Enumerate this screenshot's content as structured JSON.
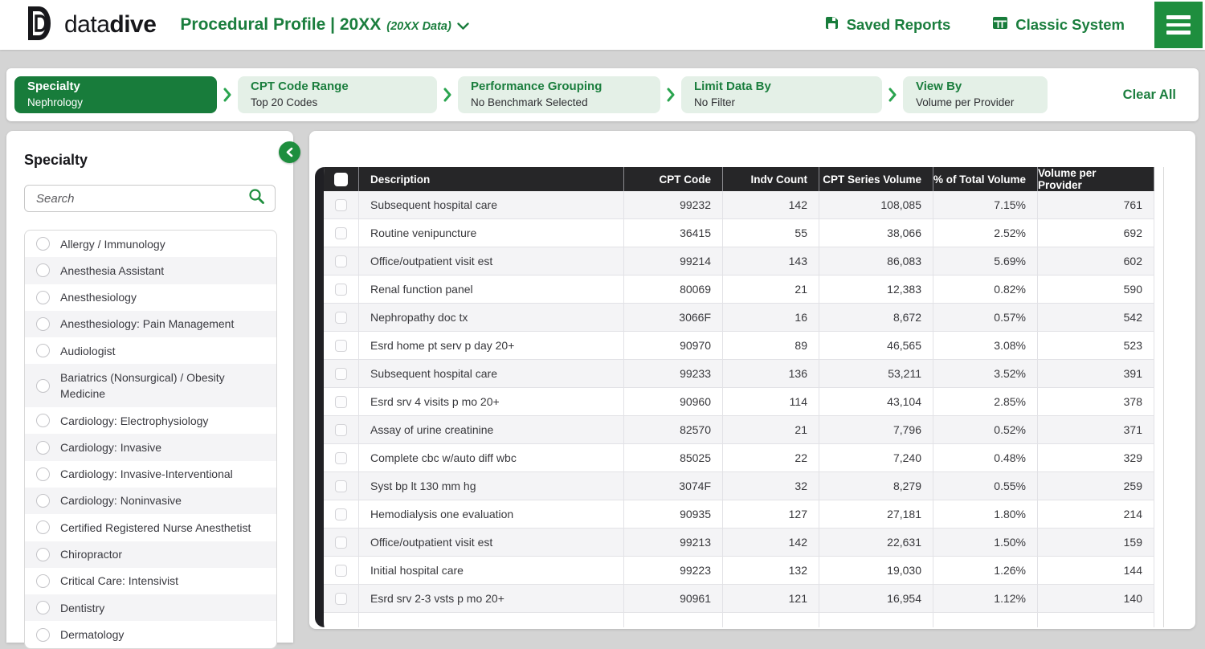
{
  "brand": {
    "logo_regular": "data",
    "logo_bold": "dive"
  },
  "header": {
    "title": "Procedural Profile | 20XX",
    "title_suffix": "(20XX Data)",
    "links": [
      {
        "label": "Saved Reports"
      },
      {
        "label": "Classic System"
      }
    ]
  },
  "filters": {
    "steps": [
      {
        "label": "Specialty",
        "value": "Nephrology",
        "active": true
      },
      {
        "label": "CPT Code Range",
        "value": "Top 20 Codes",
        "active": false
      },
      {
        "label": "Performance Grouping",
        "value": "No Benchmark Selected",
        "active": false
      },
      {
        "label": "Limit Data By",
        "value": "No Filter",
        "active": false
      },
      {
        "label": "View By",
        "value": "Volume per Provider",
        "active": false
      }
    ],
    "clear_all_label": "Clear All"
  },
  "sidebar": {
    "title": "Specialty",
    "search_placeholder": "Search",
    "items": [
      "Allergy / Immunology",
      "Anesthesia Assistant",
      "Anesthesiology",
      "Anesthesiology: Pain Management",
      "Audiologist",
      "Bariatrics (Nonsurgical) / Obesity Medicine",
      "Cardiology: Electrophysiology",
      "Cardiology: Invasive",
      "Cardiology: Invasive-Interventional",
      "Cardiology: Noninvasive",
      "Certified Registered Nurse Anesthetist",
      "Chiropractor",
      "Critical Care: Intensivist",
      "Dentistry",
      "Dermatology"
    ]
  },
  "table": {
    "columns": [
      "Description",
      "CPT Code",
      "Indv Count",
      "CPT Series Volume",
      "% of Total Volume",
      "Volume per Provider"
    ],
    "rows": [
      [
        "Subsequent hospital care",
        "99232",
        "142",
        "108,085",
        "7.15%",
        "761"
      ],
      [
        "Routine venipuncture",
        "36415",
        "55",
        "38,066",
        "2.52%",
        "692"
      ],
      [
        "Office/outpatient visit est",
        "99214",
        "143",
        "86,083",
        "5.69%",
        "602"
      ],
      [
        "Renal function panel",
        "80069",
        "21",
        "12,383",
        "0.82%",
        "590"
      ],
      [
        "Nephropathy doc tx",
        "3066F",
        "16",
        "8,672",
        "0.57%",
        "542"
      ],
      [
        "Esrd home pt serv p day 20+",
        "90970",
        "89",
        "46,565",
        "3.08%",
        "523"
      ],
      [
        "Subsequent hospital care",
        "99233",
        "136",
        "53,211",
        "3.52%",
        "391"
      ],
      [
        "Esrd srv 4 visits p mo 20+",
        "90960",
        "114",
        "43,104",
        "2.85%",
        "378"
      ],
      [
        "Assay of urine creatinine",
        "82570",
        "21",
        "7,796",
        "0.52%",
        "371"
      ],
      [
        "Complete cbc w/auto diff wbc",
        "85025",
        "22",
        "7,240",
        "0.48%",
        "329"
      ],
      [
        "Syst bp lt 130 mm hg",
        "3074F",
        "32",
        "8,279",
        "0.55%",
        "259"
      ],
      [
        "Hemodialysis one evaluation",
        "90935",
        "127",
        "27,181",
        "1.80%",
        "214"
      ],
      [
        "Office/outpatient visit est",
        "99213",
        "142",
        "22,631",
        "1.50%",
        "159"
      ],
      [
        "Initial hospital care",
        "99223",
        "132",
        "19,030",
        "1.26%",
        "144"
      ],
      [
        "Esrd srv 2-3 vsts p mo 20+",
        "90961",
        "121",
        "16,954",
        "1.12%",
        "140"
      ]
    ]
  },
  "icons": {
    "logo": "double-d-mark",
    "save": "floppy-disk",
    "classic_system": "table-columns",
    "menu": "hamburger",
    "title_caret": "chevron-down",
    "step_separator": "chevron-right",
    "collapse": "chevron-left-circle",
    "search": "magnifier",
    "option": "radio-circle",
    "select_all": "checkbox"
  },
  "colors": {
    "brand_green": "#187C3B",
    "bright_green": "#1E8E3E",
    "light_green_chip": "#E4F0E7",
    "table_header": "#262628",
    "row_shade": "#f4f4f6",
    "page_background": "#d4d4d4"
  }
}
